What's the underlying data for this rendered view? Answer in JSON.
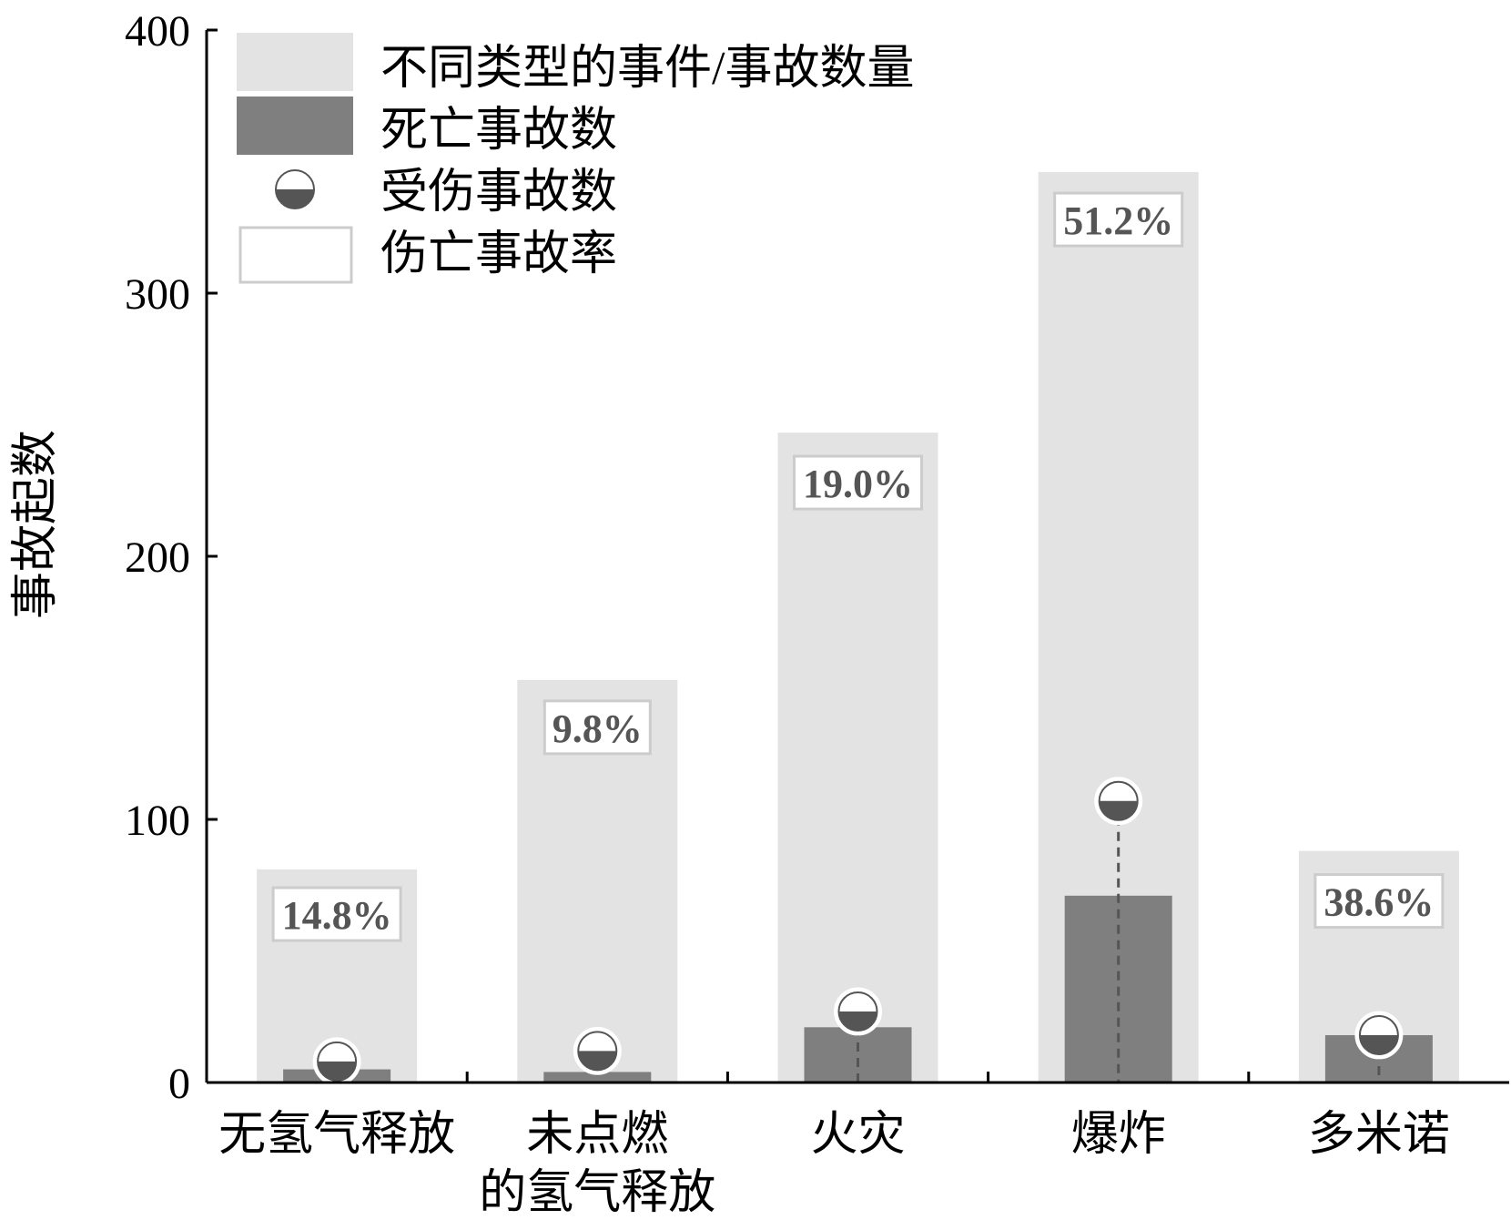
{
  "chart_data": {
    "type": "bar",
    "title": "",
    "xlabel": "",
    "ylabel": "事故起数",
    "ylim": [
      0,
      400
    ],
    "yticks": [
      "0",
      "100",
      "200",
      "300",
      "400"
    ],
    "categories": [
      [
        "无氢气释放"
      ],
      [
        "未点燃",
        "的氢气释放"
      ],
      [
        "火灾"
      ],
      [
        "爆炸"
      ],
      [
        "多米诺"
      ]
    ],
    "series": [
      {
        "name": "不同类型的事件/事故数量",
        "type": "bar",
        "color": "#e3e3e3",
        "values": [
          81,
          153,
          247,
          346,
          88
        ]
      },
      {
        "name": "死亡事故数",
        "type": "bar",
        "color": "#7f7f7f",
        "values": [
          5,
          4,
          21,
          71,
          18
        ]
      },
      {
        "name": "受伤事故数",
        "type": "point",
        "color": "#555555",
        "values": [
          8,
          12,
          27,
          107,
          18
        ]
      },
      {
        "name": "伤亡事故率",
        "type": "label",
        "values": [
          "14.8%",
          "9.8%",
          "19.0%",
          "51.2%",
          "38.6%"
        ],
        "label_y": [
          64,
          135,
          228,
          328,
          69
        ]
      }
    ],
    "grid": false,
    "legend_position": "top-left"
  }
}
